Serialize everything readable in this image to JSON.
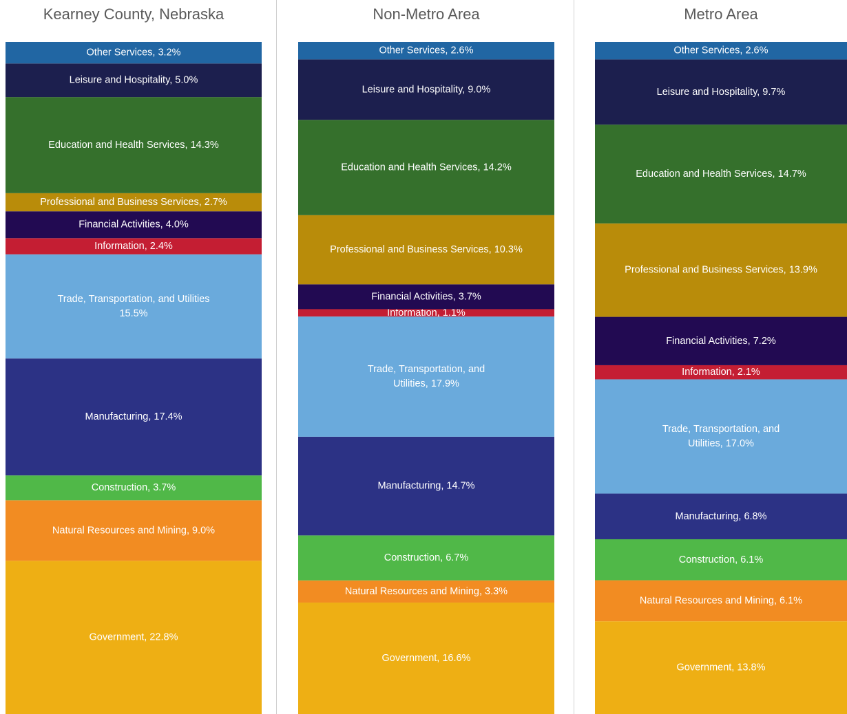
{
  "chart_data": [
    {
      "type": "stacked_bar",
      "title": "Kearney County, Nebraska",
      "values": [
        22.8,
        9.0,
        3.7,
        17.4,
        15.5,
        2.4,
        4.0,
        2.7,
        14.3,
        5.0,
        3.2
      ],
      "value_labels": [
        [
          "Government, 22.8%"
        ],
        [
          "Natural Resources and Mining, 9.0%"
        ],
        [
          "Construction, 3.7%"
        ],
        [
          "Manufacturing, 17.4%"
        ],
        [
          "Trade, Transportation, and Utilities",
          "15.5%"
        ],
        [
          "Information, 2.4%"
        ],
        [
          "Financial Activities, 4.0%"
        ],
        [
          "Professional and Business Services, 2.7%"
        ],
        [
          "Education and Health Services, 14.3%"
        ],
        [
          "Leisure and Hospitality, 5.0%"
        ],
        [
          "Other Services, 3.2%"
        ]
      ],
      "colors": [
        "#eeaf14",
        "#f28c22",
        "#50b848",
        "#2c3285",
        "#6aaadc",
        "#c41e33",
        "#220a52",
        "#b98c0a",
        "#35702c",
        "#1c1f4e",
        "#2166a3"
      ]
    },
    {
      "type": "stacked_bar",
      "title": "Non-Metro Area",
      "values": [
        16.6,
        3.3,
        6.7,
        14.7,
        17.9,
        1.1,
        3.7,
        10.3,
        14.2,
        9.0,
        2.6
      ],
      "value_labels": [
        [
          "Government, 16.6%"
        ],
        [
          "Natural Resources and Mining, 3.3%"
        ],
        [
          "Construction, 6.7%"
        ],
        [
          "Manufacturing, 14.7%"
        ],
        [
          "Trade, Transportation, and",
          "Utilities, 17.9%"
        ],
        [
          "Information, 1.1%"
        ],
        [
          "Financial Activities, 3.7%"
        ],
        [
          "Professional and Business Services, 10.3%"
        ],
        [
          "Education and Health Services, 14.2%"
        ],
        [
          "Leisure and Hospitality, 9.0%"
        ],
        [
          "Other Services, 2.6%"
        ]
      ],
      "colors": [
        "#eeaf14",
        "#f28c22",
        "#50b848",
        "#2c3285",
        "#6aaadc",
        "#c41e33",
        "#220a52",
        "#b98c0a",
        "#35702c",
        "#1c1f4e",
        "#2166a3"
      ]
    },
    {
      "type": "stacked_bar",
      "title": "Metro Area",
      "values": [
        13.8,
        6.1,
        6.1,
        6.8,
        17.0,
        2.1,
        7.2,
        13.9,
        14.7,
        9.7,
        2.6
      ],
      "value_labels": [
        [
          "Government, 13.8%"
        ],
        [
          "Natural Resources and Mining, 6.1%"
        ],
        [
          "Construction, 6.1%"
        ],
        [
          "Manufacturing, 6.8%"
        ],
        [
          "Trade, Transportation, and",
          "Utilities, 17.0%"
        ],
        [
          "Information, 2.1%"
        ],
        [
          "Financial Activities, 7.2%"
        ],
        [
          "Professional and Business Services, 13.9%"
        ],
        [
          "Education and Health Services, 14.7%"
        ],
        [
          "Leisure and Hospitality, 9.7%"
        ],
        [
          "Other Services, 2.6%"
        ]
      ],
      "colors": [
        "#eeaf14",
        "#f28c22",
        "#50b848",
        "#2c3285",
        "#6aaadc",
        "#c41e33",
        "#220a52",
        "#b98c0a",
        "#35702c",
        "#1c1f4e",
        "#2166a3"
      ]
    }
  ]
}
